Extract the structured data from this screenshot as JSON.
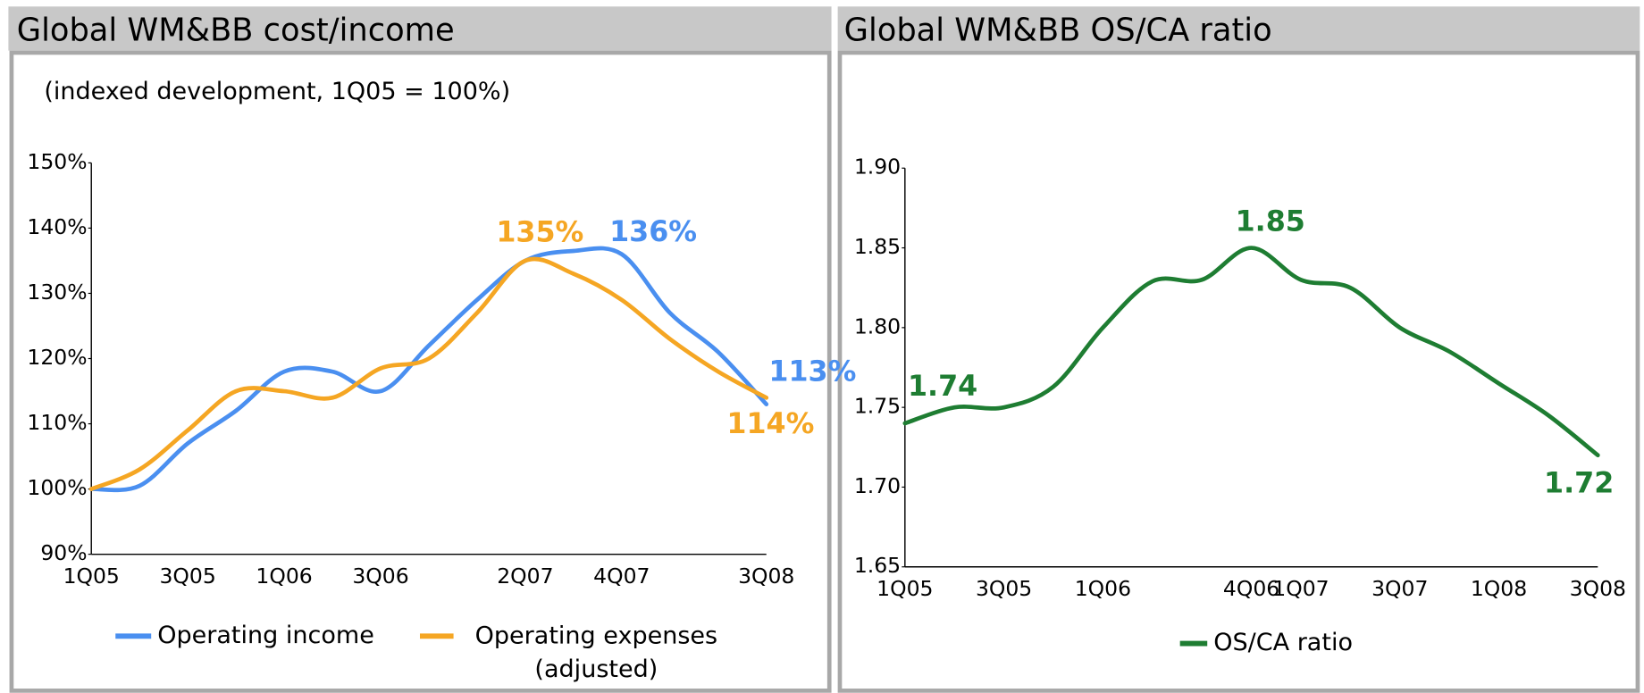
{
  "chart_data": [
    {
      "type": "line",
      "title": "Global WM&BB cost/income",
      "subtitle": "(indexed development, 1Q05 = 100%)",
      "categories": [
        "1Q05",
        null,
        "3Q05",
        null,
        "1Q06",
        null,
        "3Q06",
        null,
        null,
        "2Q07",
        null,
        "4Q07",
        null,
        null,
        "3Q08"
      ],
      "series": [
        {
          "name": "Operating income",
          "color": "#4a8ff0",
          "values": [
            100,
            100.5,
            107,
            112,
            118,
            118,
            115,
            122,
            129,
            135,
            136.5,
            136,
            127,
            121,
            113
          ],
          "value_labels": [
            null,
            null,
            null,
            null,
            null,
            null,
            null,
            null,
            null,
            null,
            null,
            "136%",
            null,
            null,
            "113%"
          ]
        },
        {
          "name": "Operating expenses (adjusted)",
          "color": "#f5a623",
          "values": [
            100,
            103,
            109,
            115,
            115,
            114,
            118.5,
            120,
            127,
            135,
            133,
            129,
            123,
            118,
            114
          ],
          "value_labels": [
            null,
            null,
            null,
            null,
            null,
            null,
            null,
            null,
            null,
            "135%",
            null,
            null,
            null,
            null,
            "114%"
          ]
        }
      ],
      "ylim": [
        90,
        150
      ],
      "yticks": [
        {
          "value": 90,
          "label": "90%"
        },
        {
          "value": 100,
          "label": "100%"
        },
        {
          "value": 110,
          "label": "110%"
        },
        {
          "value": 120,
          "label": "120%"
        },
        {
          "value": 130,
          "label": "130%"
        },
        {
          "value": 140,
          "label": "140%"
        },
        {
          "value": 150,
          "label": "150%"
        }
      ],
      "grid": false,
      "legend": "bottom"
    },
    {
      "type": "line",
      "title": "Global WM&BB OS/CA ratio",
      "categories": [
        "1Q05",
        null,
        "3Q05",
        null,
        "1Q06",
        null,
        null,
        "4Q06",
        "1Q07",
        null,
        "3Q07",
        null,
        "1Q08",
        null,
        "3Q08"
      ],
      "series": [
        {
          "name": "OS/CA ratio",
          "color": "#1e7d32",
          "values": [
            1.74,
            1.75,
            1.75,
            1.763,
            1.8,
            1.829,
            1.83,
            1.85,
            1.83,
            1.825,
            1.8,
            1.785,
            1.765,
            1.745,
            1.72
          ],
          "value_labels": [
            "1.74",
            null,
            null,
            null,
            null,
            null,
            null,
            "1.85",
            null,
            null,
            null,
            null,
            null,
            null,
            "1.72"
          ]
        }
      ],
      "ylim": [
        1.65,
        1.9
      ],
      "yticks": [
        1.65,
        {
          "value": 1.7,
          "label": "1.70"
        },
        1.75,
        {
          "value": 1.8,
          "label": "1.80"
        },
        1.85,
        {
          "value": 1.9,
          "label": "1.90"
        }
      ],
      "grid": false,
      "legend": "bottom"
    }
  ]
}
